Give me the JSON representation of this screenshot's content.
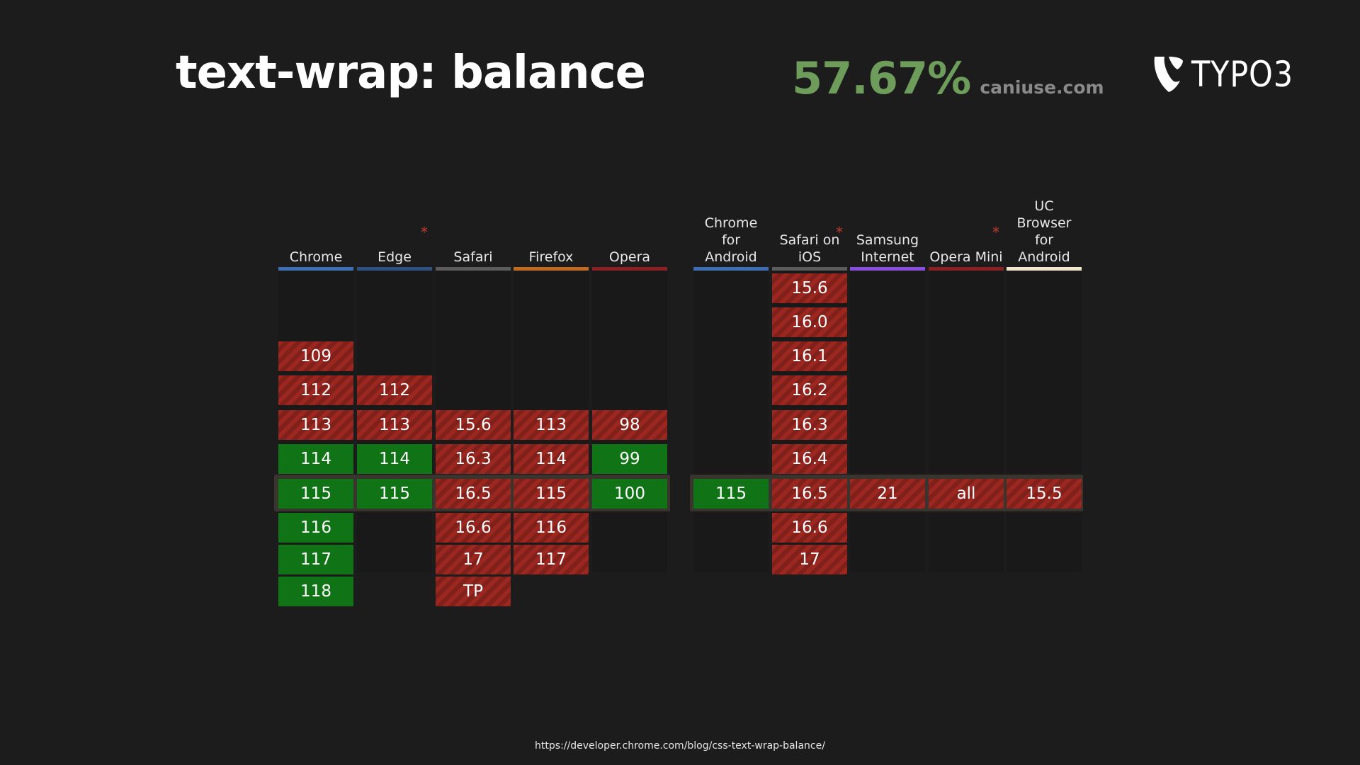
{
  "slide": {
    "title": "text-wrap: balance",
    "usage_percent": "57.67%",
    "usage_source": "caniuse.com",
    "logo_text": "TYPO3",
    "footer_url": "https://developer.chrome.com/blog/css-text-wrap-balance/"
  },
  "colors": {
    "supported": "#107316",
    "unsupported": "#9b2720",
    "percent": "#6e9c5b"
  },
  "browsers": [
    {
      "name": "Chrome",
      "has_note": false,
      "bar_color": "#3e6fb4",
      "versions": [
        {
          "row": 2,
          "v": "109",
          "s": "n"
        },
        {
          "row": 3,
          "v": "112",
          "s": "n"
        },
        {
          "row": 4,
          "v": "113",
          "s": "n"
        },
        {
          "row": 5,
          "v": "114",
          "s": "y"
        },
        {
          "row": 6,
          "v": "115",
          "s": "y"
        },
        {
          "row": 7,
          "v": "116",
          "s": "y"
        },
        {
          "row": 8,
          "v": "117",
          "s": "y"
        },
        {
          "row": 9,
          "v": "118",
          "s": "y"
        }
      ]
    },
    {
      "name": "Edge",
      "has_note": true,
      "bar_color": "#2e5383",
      "versions": [
        {
          "row": 3,
          "v": "112",
          "s": "n"
        },
        {
          "row": 4,
          "v": "113",
          "s": "n"
        },
        {
          "row": 5,
          "v": "114",
          "s": "y"
        },
        {
          "row": 6,
          "v": "115",
          "s": "y"
        }
      ]
    },
    {
      "name": "Safari",
      "has_note": false,
      "bar_color": "#5c5c5c",
      "versions": [
        {
          "row": 4,
          "v": "15.6",
          "s": "n"
        },
        {
          "row": 5,
          "v": "16.3",
          "s": "n"
        },
        {
          "row": 6,
          "v": "16.5",
          "s": "n"
        },
        {
          "row": 7,
          "v": "16.6",
          "s": "n"
        },
        {
          "row": 8,
          "v": "17",
          "s": "n"
        },
        {
          "row": 9,
          "v": "TP",
          "s": "n"
        }
      ]
    },
    {
      "name": "Firefox",
      "has_note": false,
      "bar_color": "#c26b20",
      "versions": [
        {
          "row": 4,
          "v": "113",
          "s": "n"
        },
        {
          "row": 5,
          "v": "114",
          "s": "n"
        },
        {
          "row": 6,
          "v": "115",
          "s": "n"
        },
        {
          "row": 7,
          "v": "116",
          "s": "n"
        },
        {
          "row": 8,
          "v": "117",
          "s": "n"
        }
      ]
    },
    {
      "name": "Opera",
      "has_note": false,
      "bar_color": "#8c1f24",
      "versions": [
        {
          "row": 4,
          "v": "98",
          "s": "n"
        },
        {
          "row": 5,
          "v": "99",
          "s": "y"
        },
        {
          "row": 6,
          "v": "100",
          "s": "y"
        }
      ]
    },
    {
      "name": "Chrome\nfor\nAndroid",
      "has_note": false,
      "bar_color": "#3e6fb4",
      "versions": [
        {
          "row": 6,
          "v": "115",
          "s": "y"
        }
      ]
    },
    {
      "name": "Safari on\niOS",
      "has_note": true,
      "bar_color": "#5c5c5c",
      "versions": [
        {
          "row": 0,
          "v": "15.6",
          "s": "n"
        },
        {
          "row": 1,
          "v": "16.0",
          "s": "n"
        },
        {
          "row": 2,
          "v": "16.1",
          "s": "n"
        },
        {
          "row": 3,
          "v": "16.2",
          "s": "n"
        },
        {
          "row": 4,
          "v": "16.3",
          "s": "n"
        },
        {
          "row": 5,
          "v": "16.4",
          "s": "n"
        },
        {
          "row": 6,
          "v": "16.5",
          "s": "n"
        },
        {
          "row": 7,
          "v": "16.6",
          "s": "n"
        },
        {
          "row": 8,
          "v": "17",
          "s": "n"
        }
      ]
    },
    {
      "name": "Samsung\nInternet",
      "has_note": false,
      "bar_color": "#8a4fe0",
      "versions": [
        {
          "row": 6,
          "v": "21",
          "s": "n"
        }
      ]
    },
    {
      "name": "Opera Mini",
      "has_note": true,
      "bar_color": "#8c1f24",
      "versions": [
        {
          "row": 6,
          "v": "all",
          "s": "n"
        }
      ]
    },
    {
      "name": "UC\nBrowser\nfor\nAndroid",
      "has_note": false,
      "bar_color": "#f2e6cf",
      "versions": [
        {
          "row": 6,
          "v": "15.5",
          "s": "n"
        }
      ]
    }
  ]
}
